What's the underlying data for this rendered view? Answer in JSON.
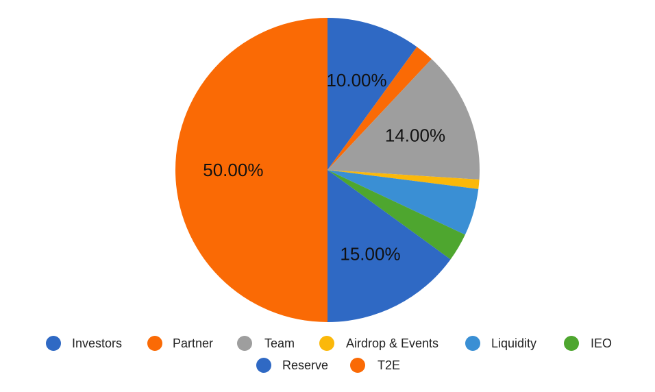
{
  "chart_data": {
    "type": "pie",
    "categories": [
      "Investors",
      "Partner",
      "Team",
      "Airdrop & Events",
      "Liquidity",
      "IEO",
      "Reserve",
      "T2E"
    ],
    "values": [
      10,
      2,
      14,
      1,
      5,
      3,
      15,
      50
    ],
    "labels": [
      "10.00%",
      "",
      "14.00%",
      "",
      "",
      "",
      "15.00%",
      "50.00%"
    ],
    "colors": [
      "#2f69c4",
      "#fa6a05",
      "#9e9e9e",
      "#fbb80a",
      "#3a8fd4",
      "#4ea62f",
      "#2f69c4",
      "#fa6a05"
    ],
    "legend_position": "bottom",
    "title": "",
    "start": "top, clockwise"
  }
}
